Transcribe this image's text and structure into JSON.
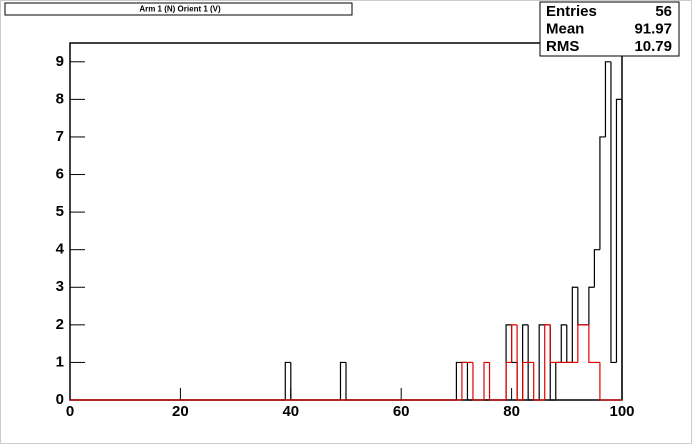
{
  "chart_data": {
    "type": "histogram",
    "title": "Arm 1 (N) Orient 1 (V)",
    "bins": [
      0,
      1,
      2,
      3,
      4,
      5,
      6,
      7,
      8,
      9,
      10,
      11,
      12,
      13,
      14,
      15,
      16,
      17,
      18,
      19,
      20,
      21,
      22,
      23,
      24,
      25,
      26,
      27,
      28,
      29,
      30,
      31,
      32,
      33,
      34,
      35,
      36,
      37,
      38,
      39,
      40,
      41,
      42,
      43,
      44,
      45,
      46,
      47,
      48,
      49,
      50,
      51,
      52,
      53,
      54,
      55,
      56,
      57,
      58,
      59,
      60,
      61,
      62,
      63,
      64,
      65,
      66,
      67,
      68,
      69,
      70,
      71,
      72,
      73,
      74,
      75,
      76,
      77,
      78,
      79,
      80,
      81,
      82,
      83,
      84,
      85,
      86,
      87,
      88,
      89,
      90,
      91,
      92,
      93,
      94,
      95,
      96,
      97,
      98,
      99,
      100
    ],
    "series": [
      {
        "color": "#000000",
        "values": [
          0,
          0,
          0,
          0,
          0,
          0,
          0,
          0,
          0,
          0,
          0,
          0,
          0,
          0,
          0,
          0,
          0,
          0,
          0,
          0,
          0,
          0,
          0,
          0,
          0,
          0,
          0,
          0,
          0,
          0,
          0,
          0,
          0,
          0,
          0,
          0,
          0,
          0,
          0,
          1,
          0,
          0,
          0,
          0,
          0,
          0,
          0,
          0,
          0,
          1,
          0,
          0,
          0,
          0,
          0,
          0,
          0,
          0,
          0,
          0,
          0,
          0,
          0,
          0,
          0,
          0,
          0,
          0,
          0,
          0,
          1,
          1,
          0,
          0,
          0,
          0,
          0,
          0,
          0,
          2,
          1,
          0,
          2,
          0,
          0,
          2,
          2,
          0,
          1,
          2,
          1,
          3,
          2,
          2,
          3,
          4,
          7,
          9,
          1,
          8
        ]
      },
      {
        "color": "#e00000",
        "values": [
          0,
          0,
          0,
          0,
          0,
          0,
          0,
          0,
          0,
          0,
          0,
          0,
          0,
          0,
          0,
          0,
          0,
          0,
          0,
          0,
          0,
          0,
          0,
          0,
          0,
          0,
          0,
          0,
          0,
          0,
          0,
          0,
          0,
          0,
          0,
          0,
          0,
          0,
          0,
          0,
          0,
          0,
          0,
          0,
          0,
          0,
          0,
          0,
          0,
          0,
          0,
          0,
          0,
          0,
          0,
          0,
          0,
          0,
          0,
          0,
          0,
          0,
          0,
          0,
          0,
          0,
          0,
          0,
          0,
          0,
          0,
          1,
          1,
          0,
          0,
          1,
          0,
          0,
          0,
          1,
          2,
          0,
          1,
          1,
          0,
          0,
          2,
          1,
          1,
          1,
          1,
          1,
          2,
          2,
          1,
          1,
          0,
          0,
          0,
          0
        ]
      }
    ],
    "xlim": [
      0,
      100
    ],
    "xticks": [
      0,
      20,
      40,
      60,
      80,
      100
    ],
    "ylim": [
      0,
      9.5
    ],
    "yticks": [
      0,
      1,
      2,
      3,
      4,
      5,
      6,
      7,
      8,
      9
    ],
    "stats": {
      "labels": [
        "Entries",
        "Mean",
        "RMS"
      ],
      "values": [
        "56",
        "91.97",
        "10.79"
      ]
    }
  }
}
